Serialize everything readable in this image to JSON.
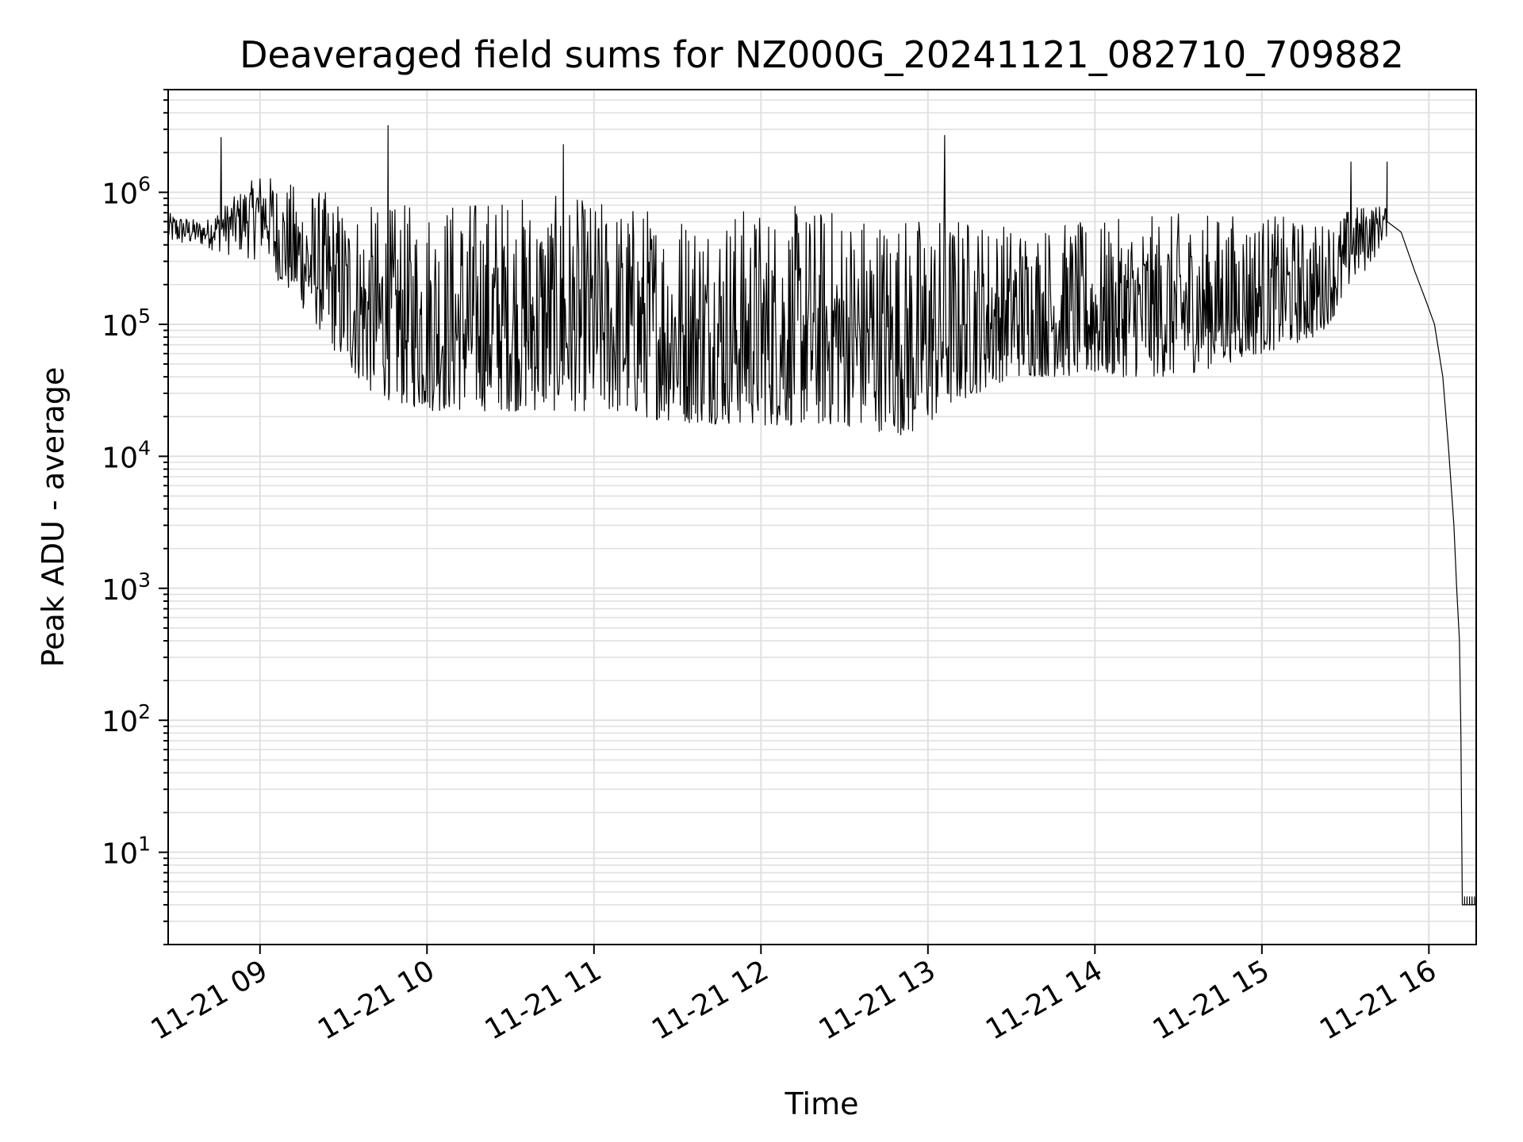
{
  "chart_data": {
    "type": "line",
    "title": "Deaveraged field sums for NZ000G_20241121_082710_709882",
    "xlabel": "Time",
    "ylabel": "Peak ADU - average",
    "yscale": "log",
    "ylim": [
      2,
      6000000
    ],
    "xlim": [
      "2024-11-21 08:27",
      "2024-11-21 16:17"
    ],
    "grid": true,
    "line_color": "#000000",
    "grid_color": "#e0e0e0",
    "x_ticks": [
      {
        "t": "2024-11-21 09:00",
        "label": "11-21 09"
      },
      {
        "t": "2024-11-21 10:00",
        "label": "11-21 10"
      },
      {
        "t": "2024-11-21 11:00",
        "label": "11-21 11"
      },
      {
        "t": "2024-11-21 12:00",
        "label": "11-21 12"
      },
      {
        "t": "2024-11-21 13:00",
        "label": "11-21 13"
      },
      {
        "t": "2024-11-21 14:00",
        "label": "11-21 14"
      },
      {
        "t": "2024-11-21 15:00",
        "label": "11-21 15"
      },
      {
        "t": "2024-11-21 16:00",
        "label": "11-21 16"
      }
    ],
    "y_ticks": [
      {
        "value": 10,
        "base": "10",
        "exp": "1"
      },
      {
        "value": 100,
        "base": "10",
        "exp": "2"
      },
      {
        "value": 1000,
        "base": "10",
        "exp": "3"
      },
      {
        "value": 10000,
        "base": "10",
        "exp": "4"
      },
      {
        "value": 100000,
        "base": "10",
        "exp": "5"
      },
      {
        "value": 1000000,
        "base": "10",
        "exp": "6"
      }
    ],
    "series": [
      {
        "envelope": [
          {
            "t": "2024-11-21 08:27",
            "low": 380000,
            "high": 700000
          },
          {
            "t": "2024-11-21 08:40",
            "low": 380000,
            "high": 600000
          },
          {
            "t": "2024-11-21 08:50",
            "low": 320000,
            "high": 900000
          },
          {
            "t": "2024-11-21 09:00",
            "low": 300000,
            "high": 1400000
          },
          {
            "t": "2024-11-21 09:10",
            "low": 180000,
            "high": 1200000
          },
          {
            "t": "2024-11-21 09:20",
            "low": 100000,
            "high": 1100000
          },
          {
            "t": "2024-11-21 09:30",
            "low": 50000,
            "high": 900000
          },
          {
            "t": "2024-11-21 09:40",
            "low": 30000,
            "high": 800000
          },
          {
            "t": "2024-11-21 09:50",
            "low": 25000,
            "high": 800000
          },
          {
            "t": "2024-11-21 10:00",
            "low": 22000,
            "high": 900000
          },
          {
            "t": "2024-11-21 10:30",
            "low": 22000,
            "high": 1000000
          },
          {
            "t": "2024-11-21 11:00",
            "low": 22000,
            "high": 900000
          },
          {
            "t": "2024-11-21 11:30",
            "low": 18000,
            "high": 800000
          },
          {
            "t": "2024-11-21 12:00",
            "low": 17000,
            "high": 800000
          },
          {
            "t": "2024-11-21 12:30",
            "low": 17000,
            "high": 800000
          },
          {
            "t": "2024-11-21 12:55",
            "low": 14000,
            "high": 700000
          },
          {
            "t": "2024-11-21 13:10",
            "low": 25000,
            "high": 700000
          },
          {
            "t": "2024-11-21 13:30",
            "low": 40000,
            "high": 600000
          },
          {
            "t": "2024-11-21 14:00",
            "low": 40000,
            "high": 600000
          },
          {
            "t": "2024-11-21 14:30",
            "low": 40000,
            "high": 700000
          },
          {
            "t": "2024-11-21 15:00",
            "low": 60000,
            "high": 700000
          },
          {
            "t": "2024-11-21 15:20",
            "low": 80000,
            "high": 600000
          },
          {
            "t": "2024-11-21 15:35",
            "low": 200000,
            "high": 800000
          },
          {
            "t": "2024-11-21 15:45",
            "low": 450000,
            "high": 800000
          }
        ],
        "tail": [
          {
            "t": "2024-11-21 15:45",
            "value": 600000
          },
          {
            "t": "2024-11-21 15:50",
            "value": 500000
          },
          {
            "t": "2024-11-21 15:55",
            "value": 250000
          },
          {
            "t": "2024-11-21 15:59",
            "value": 150000
          },
          {
            "t": "2024-11-21 16:02",
            "value": 100000
          },
          {
            "t": "2024-11-21 16:05",
            "value": 40000
          },
          {
            "t": "2024-11-21 16:07",
            "value": 12000
          },
          {
            "t": "2024-11-21 16:09",
            "value": 3000
          },
          {
            "t": "2024-11-21 16:10",
            "value": 1000
          },
          {
            "t": "2024-11-21 16:11",
            "value": 400
          },
          {
            "t": "2024-11-21 16:11:30",
            "value": 80
          },
          {
            "t": "2024-11-21 16:12",
            "value": 4
          },
          {
            "t": "2024-11-21 16:17",
            "value": 4
          }
        ],
        "spikes": [
          {
            "t": "2024-11-21 08:46",
            "value": 2600000
          },
          {
            "t": "2024-11-21 09:46",
            "value": 3200000
          },
          {
            "t": "2024-11-21 10:49",
            "value": 2300000
          },
          {
            "t": "2024-11-21 13:06",
            "value": 2700000
          },
          {
            "t": "2024-11-21 15:32",
            "value": 1700000
          },
          {
            "t": "2024-11-21 15:45",
            "value": 1700000
          }
        ]
      }
    ]
  }
}
